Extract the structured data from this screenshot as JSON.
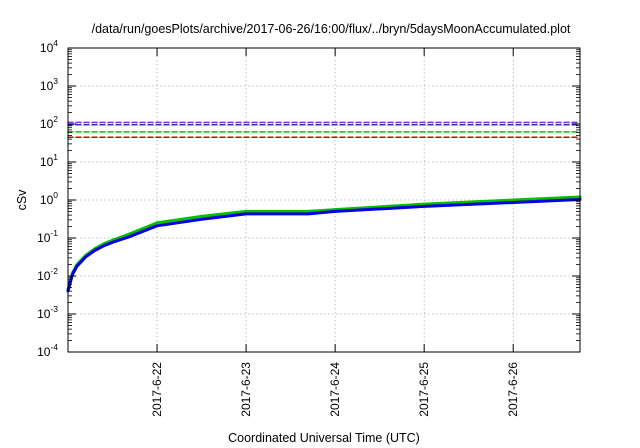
{
  "chart_data": {
    "type": "line",
    "title": "/data/run/goesPlots/archive/2017-06-26/16:00/flux/../bryn/5daysMoonAccumulated.plot",
    "xlabel": "Coordinated Universal Time (UTC)",
    "ylabel": "cSv",
    "x_scale": "date",
    "y_scale": "log",
    "xlim": [
      "2017-06-21 00:00",
      "2017-06-26 18:00"
    ],
    "ylim": [
      0.0001,
      10000
    ],
    "y_ticks": [
      {
        "value": 0.0001,
        "base": "10",
        "exp": "-4"
      },
      {
        "value": 0.001,
        "base": "10",
        "exp": "-3"
      },
      {
        "value": 0.01,
        "base": "10",
        "exp": "-2"
      },
      {
        "value": 0.1,
        "base": "10",
        "exp": "-1"
      },
      {
        "value": 1,
        "base": "10",
        "exp": "0"
      },
      {
        "value": 10,
        "base": "10",
        "exp": "1"
      },
      {
        "value": 100,
        "base": "10",
        "exp": "2"
      },
      {
        "value": 1000,
        "base": "10",
        "exp": "3"
      },
      {
        "value": 10000,
        "base": "10",
        "exp": "4"
      }
    ],
    "x_ticks": [
      {
        "value": "2017-06-22 00:00",
        "label": "2017-6-22"
      },
      {
        "value": "2017-06-23 00:00",
        "label": "2017-6-23"
      },
      {
        "value": "2017-06-24 00:00",
        "label": "2017-6-24"
      },
      {
        "value": "2017-06-25 00:00",
        "label": "2017-6-25"
      },
      {
        "value": "2017-06-26 00:00",
        "label": "2017-6-26"
      }
    ],
    "grid": true,
    "legend": "none",
    "series": [
      {
        "color": "#8a2be2",
        "style": "dashed",
        "x": [
          "2017-06-21 00:00",
          "2017-06-26 18:00"
        ],
        "y": [
          110,
          110
        ]
      },
      {
        "color": "#3030c8",
        "style": "dashed",
        "x": [
          "2017-06-21 00:00",
          "2017-06-26 18:00"
        ],
        "y": [
          95,
          95
        ]
      },
      {
        "color": "#00c000",
        "style": "dashed",
        "x": [
          "2017-06-21 00:00",
          "2017-06-26 18:00"
        ],
        "y": [
          62,
          62
        ]
      },
      {
        "color": "#e00000",
        "style": "dashed",
        "x": [
          "2017-06-21 00:00",
          "2017-06-26 18:00"
        ],
        "y": [
          45,
          45
        ]
      },
      {
        "color": "#00c000",
        "style": "solid",
        "x": [
          "2017-06-21 00:00",
          "2017-06-21 01:12",
          "2017-06-21 02:24",
          "2017-06-21 04:48",
          "2017-06-21 07:12",
          "2017-06-21 09:36",
          "2017-06-21 12:00",
          "2017-06-21 16:48",
          "2017-06-22 00:00",
          "2017-06-22 12:00",
          "2017-06-23 00:00",
          "2017-06-23 16:48",
          "2017-06-24 00:00",
          "2017-06-25 00:00",
          "2017-06-26 00:00",
          "2017-06-26 18:00"
        ],
        "y": [
          0.0045,
          0.012,
          0.02,
          0.035,
          0.052,
          0.07,
          0.087,
          0.13,
          0.25,
          0.37,
          0.5,
          0.5,
          0.56,
          0.78,
          1.0,
          1.2
        ]
      },
      {
        "color": "#0000e0",
        "style": "solid",
        "x": [
          "2017-06-21 00:00",
          "2017-06-21 01:12",
          "2017-06-21 02:24",
          "2017-06-21 04:48",
          "2017-06-21 07:12",
          "2017-06-21 09:36",
          "2017-06-21 12:00",
          "2017-06-21 16:48",
          "2017-06-22 00:00",
          "2017-06-22 12:00",
          "2017-06-23 00:00",
          "2017-06-23 16:48",
          "2017-06-24 00:00",
          "2017-06-25 00:00",
          "2017-06-26 00:00",
          "2017-06-26 18:00"
        ],
        "y": [
          0.004,
          0.011,
          0.018,
          0.032,
          0.047,
          0.062,
          0.077,
          0.11,
          0.21,
          0.31,
          0.43,
          0.43,
          0.5,
          0.68,
          0.86,
          1.03
        ]
      }
    ]
  }
}
